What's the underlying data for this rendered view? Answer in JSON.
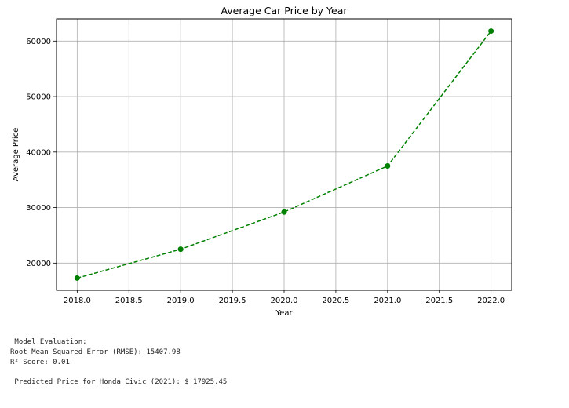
{
  "chart_data": {
    "type": "line",
    "title": "Average Car Price by Year",
    "xlabel": "Year",
    "ylabel": "Average Price",
    "x": [
      2018,
      2019,
      2020,
      2021,
      2022
    ],
    "series": [
      {
        "values": [
          17300,
          22500,
          29200,
          37500,
          61800
        ]
      }
    ],
    "xlim": [
      2017.8,
      2022.2
    ],
    "ylim": [
      15100,
      64000
    ],
    "xticks": [
      2018.0,
      2018.5,
      2019.0,
      2019.5,
      2020.0,
      2020.5,
      2021.0,
      2021.5,
      2022.0
    ],
    "xtick_labels": [
      "2018.0",
      "2018.5",
      "2019.0",
      "2019.5",
      "2020.0",
      "2020.5",
      "2021.0",
      "2021.5",
      "2022.0"
    ],
    "yticks": [
      20000,
      30000,
      40000,
      50000,
      60000
    ],
    "ytick_labels": [
      "20000",
      "30000",
      "40000",
      "50000",
      "60000"
    ],
    "grid": true,
    "line_style": "dashed",
    "marker": "circle",
    "line_color": "#008000"
  },
  "output": {
    "eval_header": " Model Evaluation:",
    "rmse_line": "Root Mean Squared Error (RMSE): 15407.98",
    "r2_line": "R² Score: 0.01",
    "prediction_line": " Predicted Price for Honda Civic (2021): $ 17925.45"
  }
}
